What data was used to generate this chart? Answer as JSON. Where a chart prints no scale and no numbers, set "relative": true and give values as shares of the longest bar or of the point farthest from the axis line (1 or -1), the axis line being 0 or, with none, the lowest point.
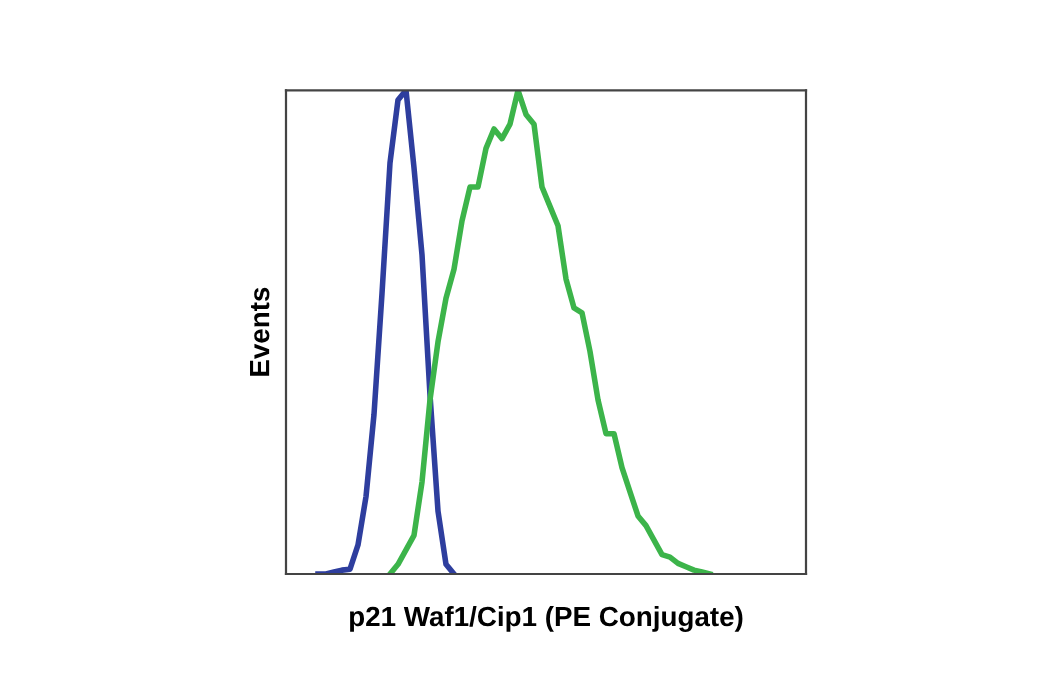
{
  "chart_data": {
    "type": "line",
    "relative": true,
    "xlabel": "p21 Waf1/Cip1 (PE Conjugate)",
    "ylabel": "Events",
    "legend": false,
    "grid": false,
    "marker": "none",
    "line_style": "solid",
    "categories": [
      null,
      null,
      null,
      null,
      null,
      null,
      null,
      null,
      null,
      null,
      null,
      null,
      null,
      null,
      null,
      null,
      null,
      null,
      null,
      null,
      null,
      null,
      null,
      null,
      null,
      null,
      null,
      null,
      null,
      null,
      null,
      null,
      null,
      null,
      null,
      null,
      null,
      null,
      null,
      null,
      null,
      null,
      null,
      null,
      null,
      null,
      null,
      null,
      null,
      null,
      null,
      null,
      null,
      null,
      null,
      null,
      null,
      null,
      null,
      null,
      null,
      null,
      null,
      null,
      null,
      null
    ],
    "series": [
      {
        "color": "#2e3e9e",
        "values": [
          null,
          null,
          null,
          null,
          0,
          0,
          0.004,
          0.008,
          0.01,
          0.06,
          0.16,
          0.33,
          0.58,
          0.85,
          0.98,
          1.0,
          0.84,
          0.66,
          0.37,
          0.13,
          0.02,
          0,
          null,
          null,
          null,
          null,
          null,
          null,
          null,
          null,
          null,
          null,
          null,
          null,
          null,
          null,
          null,
          null,
          null,
          null,
          null,
          null,
          null,
          null,
          null,
          null,
          null,
          null,
          null,
          null,
          null,
          null,
          null,
          null,
          null,
          null,
          null,
          null,
          null,
          null,
          null,
          null,
          null,
          null,
          null,
          null
        ]
      },
      {
        "color": "#3cb44a",
        "values": [
          null,
          null,
          null,
          null,
          null,
          null,
          null,
          null,
          null,
          null,
          null,
          null,
          null,
          0,
          0.02,
          0.05,
          0.08,
          0.19,
          0.36,
          0.48,
          0.57,
          0.63,
          0.73,
          0.8,
          0.8,
          0.88,
          0.92,
          0.9,
          0.93,
          1.0,
          0.95,
          0.93,
          0.8,
          0.76,
          0.72,
          0.61,
          0.55,
          0.54,
          0.46,
          0.36,
          0.29,
          0.29,
          0.22,
          0.17,
          0.12,
          0.1,
          0.07,
          0.04,
          0.035,
          0.022,
          0.015,
          0.008,
          0.004,
          0,
          null,
          null,
          null,
          null,
          null,
          null,
          null,
          null,
          null,
          null,
          null,
          null
        ]
      }
    ]
  }
}
